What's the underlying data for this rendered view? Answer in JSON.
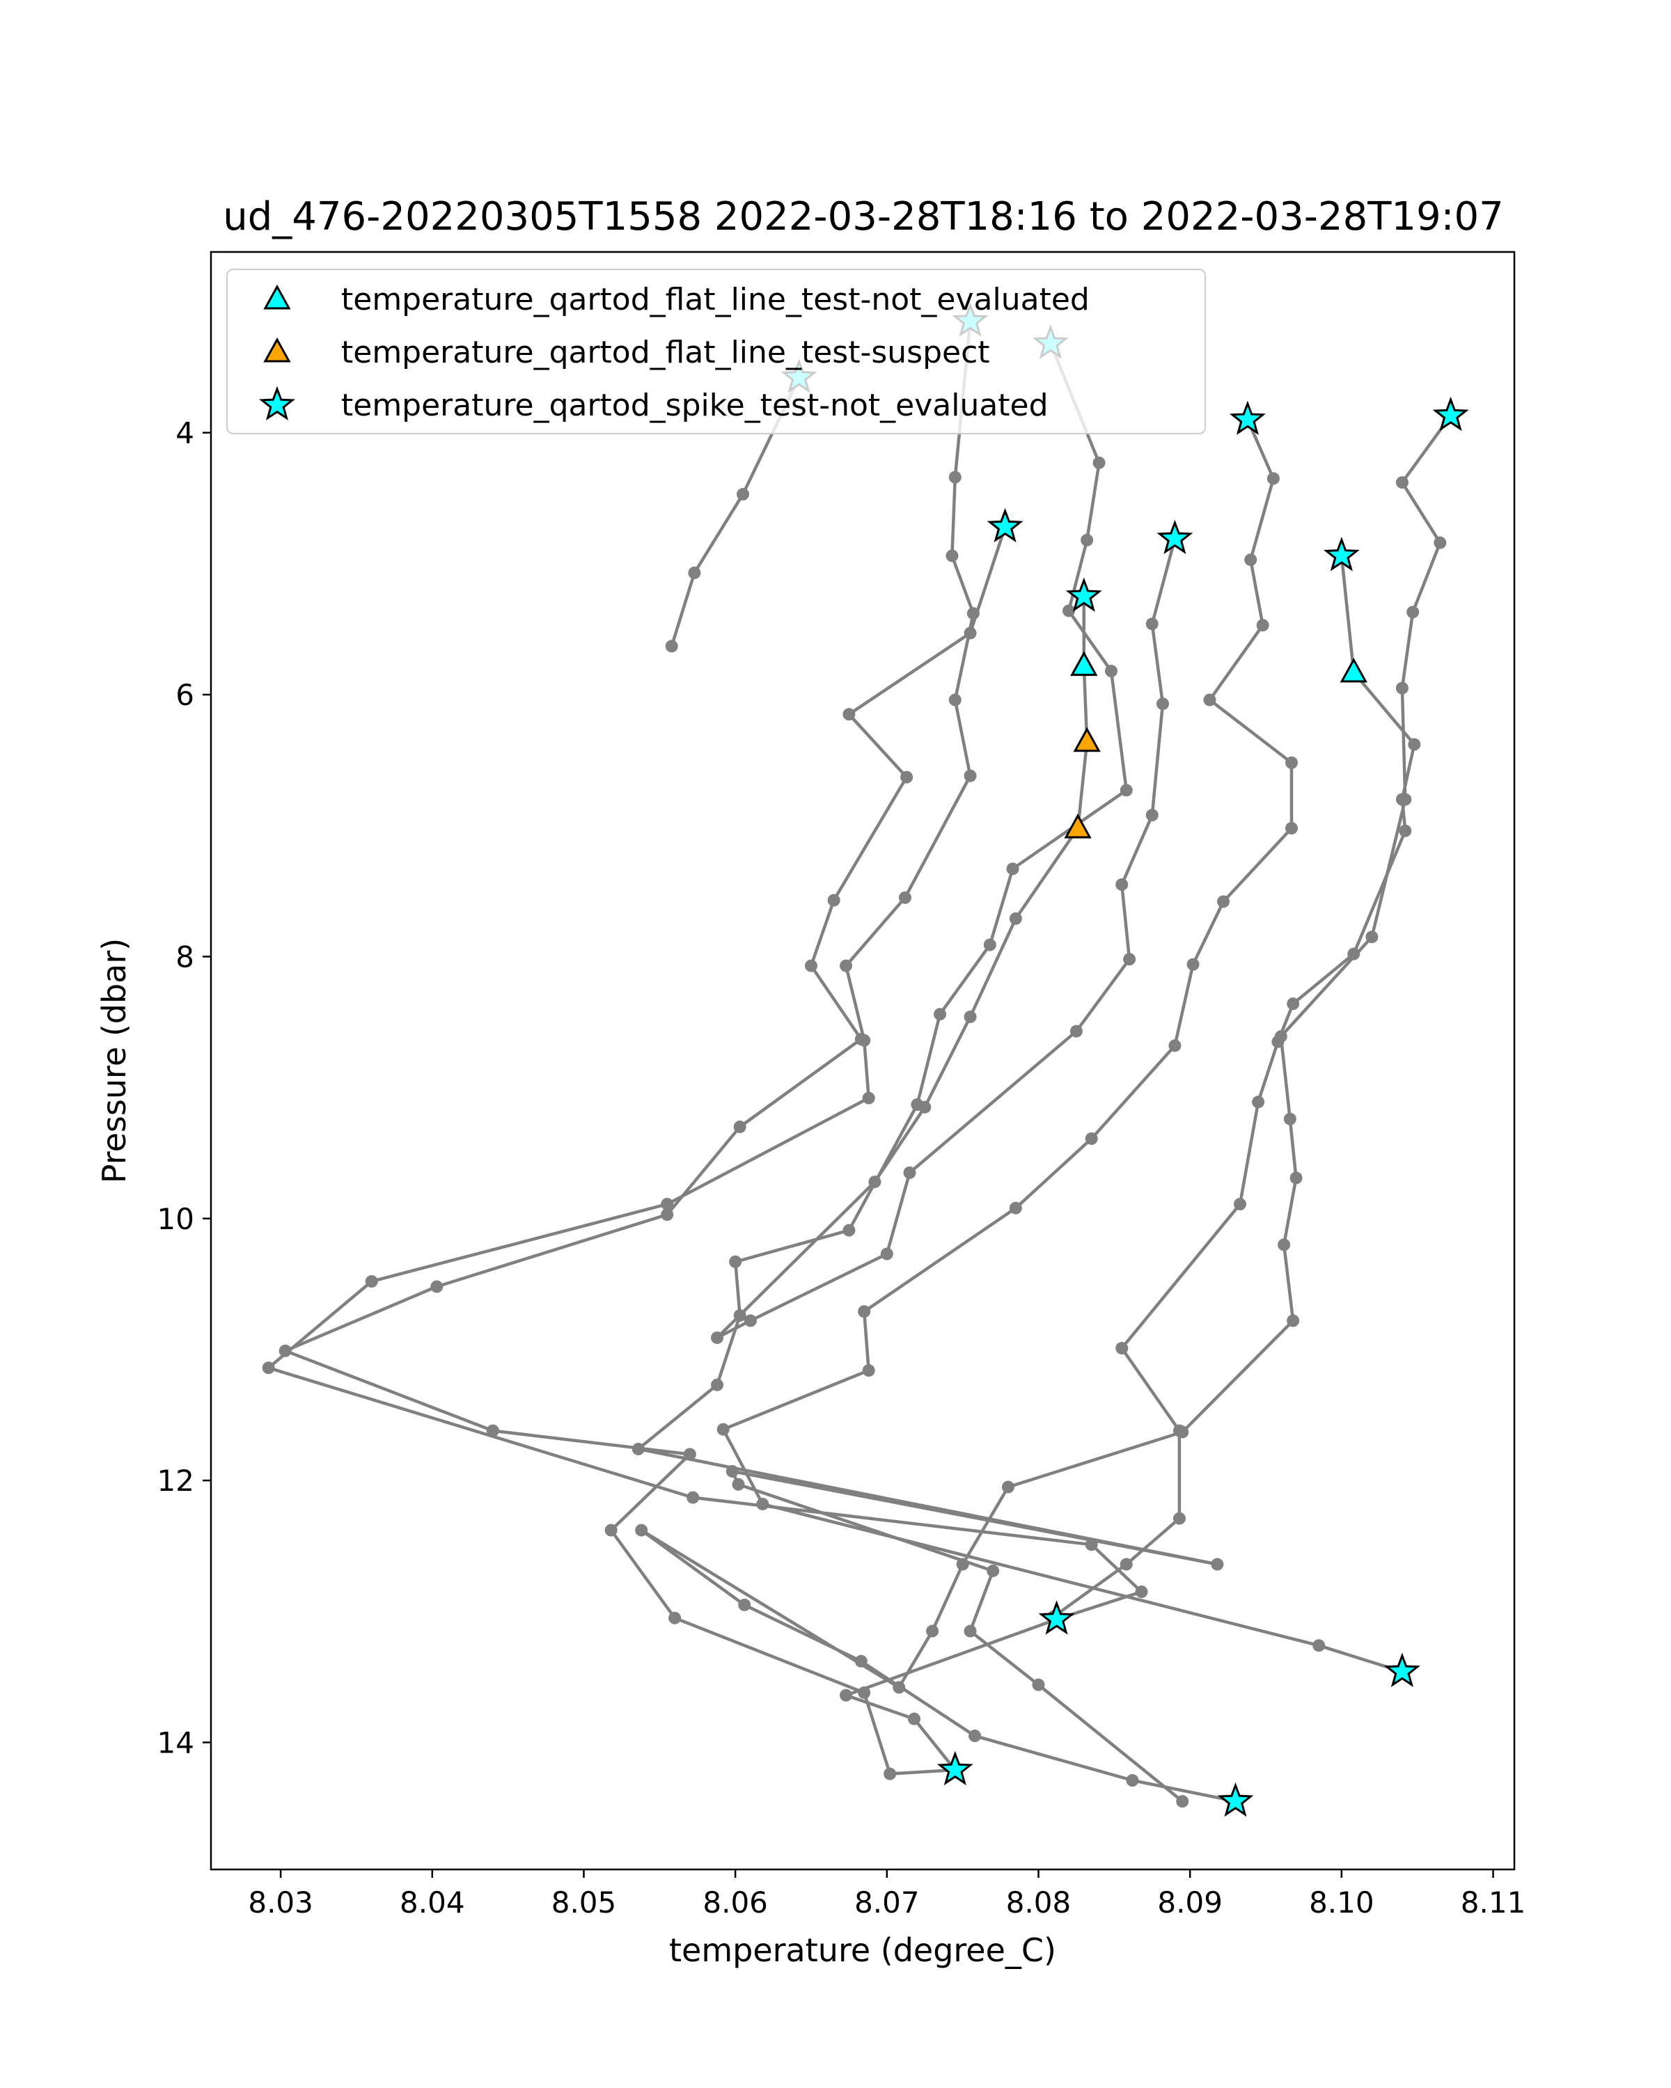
{
  "chart_data": {
    "type": "line",
    "title": "ud_476-20220305T1558 2022-03-28T18:16 to 2022-03-28T19:07",
    "xlabel": "temperature (degree_C)",
    "ylabel": "Pressure (dbar)",
    "xlim": [
      8.0254,
      8.1114
    ],
    "ylim": [
      14.97,
      2.62
    ],
    "y_inverted": true,
    "grid": false,
    "legend_position": "top-left",
    "xticks": [
      "8.03",
      "8.04",
      "8.05",
      "8.06",
      "8.07",
      "8.08",
      "8.09",
      "8.10",
      "8.11"
    ],
    "yticks": [
      "4",
      "6",
      "8",
      "10",
      "12",
      "14"
    ],
    "line_color": "#808080",
    "series": [
      {
        "points": [
          [
            8.0558,
            5.63
          ],
          [
            8.0573,
            5.07
          ],
          [
            8.0605,
            4.47
          ],
          [
            8.0642,
            3.58
          ]
        ]
      },
      {
        "points": [
          [
            8.0778,
            4.72
          ],
          [
            8.0755,
            5.53
          ],
          [
            8.0675,
            6.15
          ],
          [
            8.0713,
            6.63
          ],
          [
            8.0665,
            7.57
          ],
          [
            8.065,
            8.07
          ],
          [
            8.0683,
            8.63
          ],
          [
            8.0603,
            9.3
          ],
          [
            8.0555,
            9.97
          ],
          [
            8.0403,
            10.52
          ],
          [
            8.0303,
            11.01
          ],
          [
            8.044,
            11.62
          ],
          [
            8.057,
            11.8
          ],
          [
            8.0518,
            12.38
          ],
          [
            8.056,
            13.05
          ],
          [
            8.0685,
            13.62
          ],
          [
            8.0702,
            14.24
          ],
          [
            8.0745,
            14.21
          ]
        ]
      },
      {
        "points": [
          [
            8.0755,
            3.15
          ],
          [
            8.0745,
            4.34
          ],
          [
            8.0743,
            4.94
          ],
          [
            8.0757,
            5.38
          ],
          [
            8.0745,
            6.04
          ],
          [
            8.0755,
            6.62
          ],
          [
            8.0712,
            7.55
          ],
          [
            8.0673,
            8.07
          ],
          [
            8.0685,
            8.64
          ],
          [
            8.0688,
            9.08
          ],
          [
            8.0555,
            9.89
          ],
          [
            8.036,
            10.48
          ],
          [
            8.0292,
            11.14
          ],
          [
            8.0572,
            12.13
          ],
          [
            8.0835,
            12.49
          ],
          [
            8.0868,
            12.85
          ],
          [
            8.0812,
            13.06
          ],
          [
            8.0673,
            13.64
          ],
          [
            8.0718,
            13.82
          ],
          [
            8.0745,
            14.21
          ]
        ]
      },
      {
        "points": [
          [
            8.0808,
            3.32
          ],
          [
            8.084,
            4.23
          ],
          [
            8.0832,
            4.82
          ],
          [
            8.082,
            5.36
          ],
          [
            8.0848,
            5.82
          ],
          [
            8.0858,
            6.73
          ],
          [
            8.0783,
            7.33
          ],
          [
            8.0768,
            7.91
          ],
          [
            8.0735,
            8.44
          ],
          [
            8.072,
            9.13
          ],
          [
            8.0675,
            10.09
          ],
          [
            8.06,
            10.33
          ],
          [
            8.0603,
            10.74
          ],
          [
            8.0588,
            11.27
          ],
          [
            8.0536,
            11.76
          ],
          [
            8.0918,
            12.64
          ],
          [
            8.0598,
            11.93
          ],
          [
            8.0602,
            12.03
          ],
          [
            8.077,
            12.69
          ],
          [
            8.0755,
            13.15
          ],
          [
            8.08,
            13.56
          ],
          [
            8.0895,
            14.45
          ]
        ]
      },
      {
        "points": [
          [
            8.083,
            5.25
          ],
          [
            8.083,
            5.78
          ],
          [
            8.0832,
            6.36
          ],
          [
            8.0826,
            7.02
          ],
          [
            8.0785,
            7.71
          ],
          [
            8.0755,
            8.46
          ],
          [
            8.0725,
            9.15
          ],
          [
            8.0692,
            9.72
          ],
          [
            8.0588,
            10.91
          ],
          [
            8.061,
            10.78
          ],
          [
            8.07,
            10.27
          ],
          [
            8.0715,
            9.65
          ],
          [
            8.0825,
            8.57
          ],
          [
            8.086,
            8.02
          ],
          [
            8.0855,
            7.45
          ],
          [
            8.0875,
            6.92
          ],
          [
            8.0882,
            6.07
          ],
          [
            8.0875,
            5.46
          ],
          [
            8.089,
            4.81
          ]
        ]
      },
      {
        "points": [
          [
            8.0938,
            3.9
          ],
          [
            8.0955,
            4.35
          ],
          [
            8.094,
            4.97
          ],
          [
            8.0948,
            5.47
          ],
          [
            8.0913,
            6.04
          ],
          [
            8.0967,
            6.52
          ],
          [
            8.0967,
            7.02
          ],
          [
            8.0922,
            7.58
          ],
          [
            8.0902,
            8.06
          ],
          [
            8.089,
            8.68
          ],
          [
            8.0835,
            9.39
          ],
          [
            8.0785,
            9.92
          ],
          [
            8.0685,
            10.71
          ],
          [
            8.0688,
            11.16
          ],
          [
            8.0592,
            11.61
          ],
          [
            8.0618,
            12.18
          ],
          [
            8.0985,
            13.26
          ],
          [
            8.104,
            13.46
          ]
        ]
      },
      {
        "points": [
          [
            8.1,
            4.94
          ],
          [
            8.1008,
            5.83
          ],
          [
            8.1048,
            6.38
          ],
          [
            8.104,
            6.8
          ],
          [
            8.1042,
            7.04
          ],
          [
            8.1008,
            7.98
          ],
          [
            8.0968,
            8.36
          ],
          [
            8.0958,
            8.65
          ],
          [
            8.0945,
            9.11
          ],
          [
            8.0933,
            9.89
          ],
          [
            8.0855,
            10.99
          ],
          [
            8.0893,
            11.62
          ],
          [
            8.0893,
            12.29
          ],
          [
            8.0858,
            12.64
          ],
          [
            8.081,
            13.04
          ]
        ]
      },
      {
        "points": [
          [
            8.1072,
            3.87
          ],
          [
            8.104,
            4.38
          ],
          [
            8.1065,
            4.84
          ],
          [
            8.1047,
            5.37
          ],
          [
            8.104,
            5.95
          ],
          [
            8.1042,
            6.8
          ],
          [
            8.102,
            7.85
          ],
          [
            8.096,
            8.61
          ],
          [
            8.0966,
            9.24
          ],
          [
            8.097,
            9.69
          ],
          [
            8.0962,
            10.2
          ],
          [
            8.0968,
            10.78
          ],
          [
            8.0895,
            11.63
          ],
          [
            8.078,
            12.05
          ],
          [
            8.075,
            12.64
          ],
          [
            8.073,
            13.15
          ],
          [
            8.0708,
            13.58
          ],
          [
            8.0538,
            12.38
          ],
          [
            8.0606,
            12.95
          ],
          [
            8.0683,
            13.38
          ],
          [
            8.0758,
            13.95
          ],
          [
            8.0862,
            14.29
          ],
          [
            8.093,
            14.45
          ]
        ]
      }
    ],
    "markers": [
      {
        "legend_index": 2,
        "points": [
          [
            8.0642,
            3.58
          ],
          [
            8.0755,
            3.15
          ],
          [
            8.0808,
            3.32
          ],
          [
            8.0778,
            4.72
          ],
          [
            8.083,
            5.25
          ],
          [
            8.089,
            4.81
          ],
          [
            8.0938,
            3.9
          ],
          [
            8.1,
            4.94
          ],
          [
            8.1072,
            3.87
          ],
          [
            8.0812,
            13.06
          ],
          [
            8.104,
            13.46
          ],
          [
            8.0745,
            14.21
          ],
          [
            8.093,
            14.45
          ]
        ]
      },
      {
        "legend_index": 0,
        "points": [
          [
            8.083,
            5.78
          ],
          [
            8.1008,
            5.83
          ]
        ]
      },
      {
        "legend_index": 1,
        "points": [
          [
            8.0832,
            6.36
          ],
          [
            8.0826,
            7.02
          ]
        ]
      }
    ],
    "legend": [
      {
        "label": "temperature_qartod_flat_line_test-not_evaluated",
        "marker": "triangle",
        "color": "#00ffff"
      },
      {
        "label": "temperature_qartod_flat_line_test-suspect",
        "marker": "triangle",
        "color": "#ffa500"
      },
      {
        "label": "temperature_qartod_spike_test-not_evaluated",
        "marker": "star",
        "color": "#00ffff"
      }
    ]
  }
}
